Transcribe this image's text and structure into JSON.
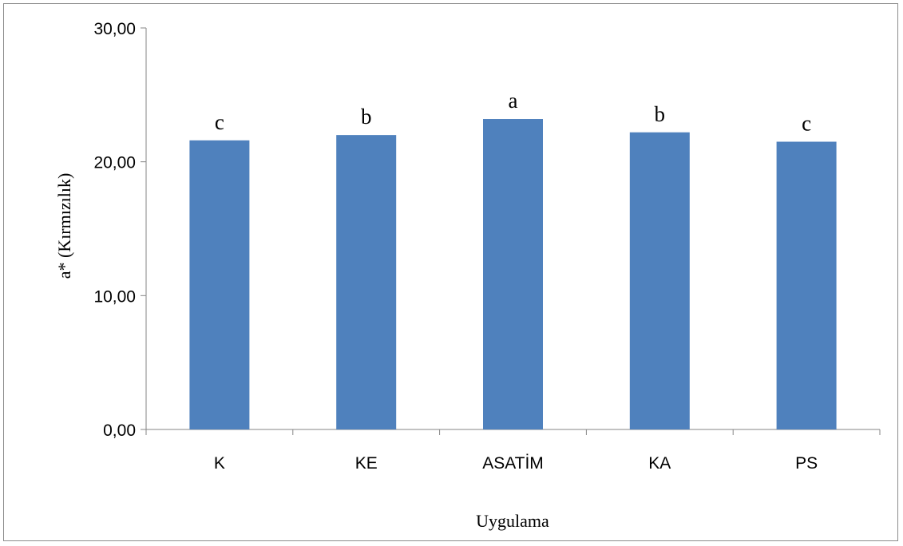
{
  "chart_data": {
    "type": "bar",
    "categories": [
      "K",
      "KE",
      "ASATİM",
      "KA",
      "PS"
    ],
    "values": [
      21.6,
      22.0,
      23.2,
      22.2,
      21.5
    ],
    "data_labels": [
      "c",
      "b",
      "a",
      "b",
      "c"
    ],
    "title": "",
    "xlabel": "Uygulama",
    "ylabel": "a* (Kırmızılık)",
    "ylim": [
      0,
      30
    ],
    "yticks": [
      "0,00",
      "10,00",
      "20,00",
      "30,00"
    ],
    "grid": false,
    "legend": "none",
    "bar_color": "#4f81bd"
  }
}
